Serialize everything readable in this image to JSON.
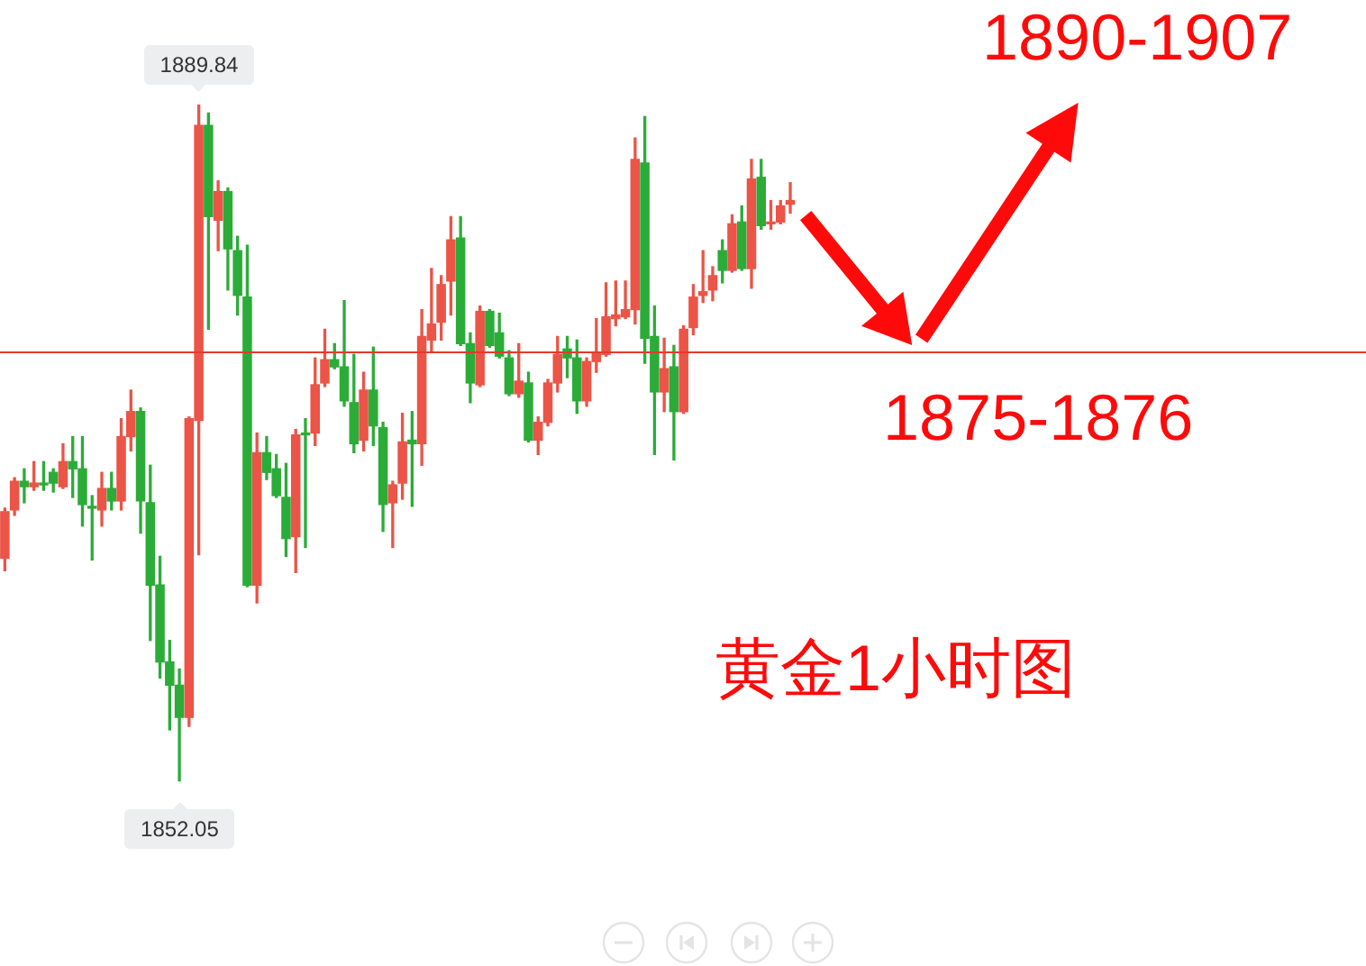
{
  "chart_data": {
    "type": "candlestick",
    "title": "黄金1小时图",
    "categories": [
      null,
      null,
      null,
      null,
      null,
      null,
      null,
      null,
      null,
      null,
      null,
      null,
      null,
      null,
      null,
      null,
      null,
      null,
      null,
      null,
      null,
      null,
      null,
      null,
      null,
      null,
      null,
      null,
      null,
      null,
      null,
      null,
      null,
      null,
      null,
      null,
      null,
      null,
      null,
      null,
      null,
      null,
      null,
      null,
      null,
      null,
      null,
      null,
      null,
      null,
      null,
      null,
      null,
      null,
      null,
      null,
      null,
      null,
      null,
      null,
      null,
      null,
      null,
      null,
      null,
      null,
      null,
      null,
      null,
      null,
      null,
      null,
      null,
      null,
      null,
      null,
      null,
      null,
      null,
      null,
      null,
      null
    ],
    "ohlc": [
      [
        1864.5,
        1867.3,
        1863.8,
        1867.1
      ],
      [
        1867.2,
        1869.0,
        1866.9,
        1868.8
      ],
      [
        1868.8,
        1869.5,
        1867.6,
        1868.5
      ],
      [
        1868.5,
        1869.9,
        1868.3,
        1868.7
      ],
      [
        1868.7,
        1869.9,
        1868.3,
        1868.6
      ],
      [
        1869.3,
        1869.5,
        1868.2,
        1868.7
      ],
      [
        1868.5,
        1870.9,
        1868.4,
        1869.9
      ],
      [
        1869.9,
        1871.3,
        1867.9,
        1869.5
      ],
      [
        1869.5,
        1871.3,
        1866.3,
        1867.5
      ],
      [
        1867.4,
        1868.0,
        1864.4,
        1867.3
      ],
      [
        1867.2,
        1869.3,
        1866.3,
        1868.4
      ],
      [
        1868.4,
        1869.3,
        1867.2,
        1867.7
      ],
      [
        1867.7,
        1872.3,
        1867.2,
        1871.3
      ],
      [
        1871.3,
        1873.9,
        1870.5,
        1872.7
      ],
      [
        1872.7,
        1872.9,
        1865.9,
        1867.7
      ],
      [
        1867.6,
        1869.7,
        1859.9,
        1863.0
      ],
      [
        1863.0,
        1864.6,
        1857.8,
        1858.7
      ],
      [
        1858.7,
        1859.9,
        1854.9,
        1857.4
      ],
      [
        1857.4,
        1858.3,
        1852.05,
        1855.6
      ],
      [
        1855.6,
        1872.4,
        1855.1,
        1872.3
      ],
      [
        1872.2,
        1889.84,
        1864.7,
        1888.7
      ],
      [
        1888.7,
        1889.4,
        1877.3,
        1883.6
      ],
      [
        1883.4,
        1885.6,
        1881.7,
        1885.0
      ],
      [
        1885.0,
        1885.2,
        1879.5,
        1881.8
      ],
      [
        1881.7,
        1882.5,
        1878.1,
        1879.2
      ],
      [
        1879.1,
        1882.0,
        1862.9,
        1863.0
      ],
      [
        1863.0,
        1871.5,
        1862.0,
        1870.4
      ],
      [
        1870.4,
        1871.3,
        1868.9,
        1869.3
      ],
      [
        1869.5,
        1870.3,
        1867.9,
        1868.0
      ],
      [
        1867.9,
        1869.8,
        1864.6,
        1865.6
      ],
      [
        1865.7,
        1871.7,
        1863.7,
        1871.4
      ],
      [
        1871.5,
        1872.3,
        1865.1,
        1871.4
      ],
      [
        1871.5,
        1875.7,
        1870.8,
        1874.2
      ],
      [
        1874.3,
        1877.3,
        1874.1,
        1875.6
      ],
      [
        1875.6,
        1876.5,
        1875.1,
        1875.2
      ],
      [
        1875.2,
        1878.9,
        1873.0,
        1873.3
      ],
      [
        1873.2,
        1875.9,
        1870.4,
        1870.9
      ],
      [
        1871.1,
        1874.9,
        1870.5,
        1873.9
      ],
      [
        1873.9,
        1876.3,
        1870.8,
        1871.9
      ],
      [
        1871.8,
        1872.1,
        1866.0,
        1867.5
      ],
      [
        1867.6,
        1868.8,
        1865.1,
        1868.6
      ],
      [
        1868.7,
        1872.6,
        1867.8,
        1871.0
      ],
      [
        1871.1,
        1872.7,
        1867.4,
        1870.9
      ],
      [
        1870.9,
        1878.4,
        1869.7,
        1876.9
      ],
      [
        1876.7,
        1880.7,
        1876.0,
        1877.6
      ],
      [
        1877.7,
        1880.3,
        1876.7,
        1879.8
      ],
      [
        1880.0,
        1883.6,
        1878.1,
        1882.3
      ],
      [
        1882.4,
        1883.6,
        1876.4,
        1876.5
      ],
      [
        1876.5,
        1877.1,
        1873.2,
        1874.3
      ],
      [
        1874.2,
        1878.6,
        1874.1,
        1878.3
      ],
      [
        1878.3,
        1878.4,
        1876.3,
        1876.4
      ],
      [
        1877.1,
        1878.2,
        1875.7,
        1875.8
      ],
      [
        1875.7,
        1876.1,
        1873.6,
        1873.7
      ],
      [
        1873.7,
        1876.5,
        1873.5,
        1874.4
      ],
      [
        1874.3,
        1874.9,
        1871.0,
        1871.1
      ],
      [
        1871.1,
        1872.4,
        1870.3,
        1872.1
      ],
      [
        1872.1,
        1874.5,
        1871.9,
        1874.3
      ],
      [
        1874.3,
        1876.9,
        1873.8,
        1875.9
      ],
      [
        1876.2,
        1876.9,
        1874.6,
        1875.7
      ],
      [
        1875.7,
        1876.7,
        1872.6,
        1873.3
      ],
      [
        1873.3,
        1875.7,
        1873.0,
        1875.5
      ],
      [
        1875.5,
        1877.9,
        1874.9,
        1876.0
      ],
      [
        1875.9,
        1879.9,
        1875.8,
        1878.0
      ],
      [
        1877.9,
        1880.0,
        1877.5,
        1878.1
      ],
      [
        1878.0,
        1880.0,
        1877.9,
        1878.4
      ],
      [
        1878.4,
        1888.0,
        1877.6,
        1886.8
      ],
      [
        1886.6,
        1889.2,
        1875.4,
        1876.8
      ],
      [
        1876.9,
        1878.6,
        1870.3,
        1873.8
      ],
      [
        1873.8,
        1876.8,
        1872.7,
        1875.1
      ],
      [
        1875.2,
        1876.4,
        1870.0,
        1872.7
      ],
      [
        1872.7,
        1877.5,
        1872.6,
        1877.3
      ],
      [
        1877.4,
        1879.8,
        1877.0,
        1879.1
      ],
      [
        1879.2,
        1881.7,
        1878.8,
        1879.4
      ],
      [
        1879.5,
        1880.8,
        1878.9,
        1880.3
      ],
      [
        1881.7,
        1882.3,
        1879.9,
        1880.6
      ],
      [
        1880.6,
        1883.7,
        1880.5,
        1883.2
      ],
      [
        1883.3,
        1884.2,
        1880.6,
        1880.7
      ],
      [
        1880.7,
        1886.8,
        1879.6,
        1885.7
      ],
      [
        1885.8,
        1886.8,
        1882.9,
        1883.1
      ],
      [
        1883.2,
        1884.5,
        1882.9,
        1883.3
      ],
      [
        1883.3,
        1884.5,
        1883.2,
        1884.2
      ],
      [
        1884.3,
        1885.5,
        1883.8,
        1884.5
      ]
    ],
    "colors": [
      "#eb5446",
      "#eb5446",
      "#2bac38",
      "#eb5446",
      "#2bac38",
      "#2bac38",
      "#eb5446",
      "#2bac38",
      "#2bac38",
      "#2bac38",
      "#eb5446",
      "#2bac38",
      "#eb5446",
      "#eb5446",
      "#2bac38",
      "#2bac38",
      "#2bac38",
      "#2bac38",
      "#2bac38",
      "#eb5446",
      "#eb5446",
      "#2bac38",
      "#eb5446",
      "#2bac38",
      "#2bac38",
      "#2bac38",
      "#eb5446",
      "#2bac38",
      "#2bac38",
      "#2bac38",
      "#eb5446",
      "#2bac38",
      "#eb5446",
      "#eb5446",
      "#2bac38",
      "#2bac38",
      "#2bac38",
      "#eb5446",
      "#2bac38",
      "#2bac38",
      "#eb5446",
      "#eb5446",
      "#2bac38",
      "#eb5446",
      "#eb5446",
      "#eb5446",
      "#eb5446",
      "#2bac38",
      "#2bac38",
      "#eb5446",
      "#2bac38",
      "#2bac38",
      "#2bac38",
      "#eb5446",
      "#2bac38",
      "#eb5446",
      "#eb5446",
      "#eb5446",
      "#2bac38",
      "#2bac38",
      "#eb5446",
      "#eb5446",
      "#eb5446",
      "#eb5446",
      "#eb5446",
      "#eb5446",
      "#2bac38",
      "#2bac38",
      "#eb5446",
      "#2bac38",
      "#eb5446",
      "#eb5446",
      "#eb5446",
      "#eb5446",
      "#2bac38",
      "#eb5446",
      "#2bac38",
      "#eb5446",
      "#2bac38",
      "#eb5446",
      "#eb5446",
      "#eb5446"
    ],
    "ref_lines": [
      {
        "axis": "y",
        "value": 1876.1,
        "color": "#e8392b"
      }
    ],
    "annotations": [
      {
        "text": "1889.84",
        "y": 1889.84
      },
      {
        "text": "1852.05",
        "y": 1852.05
      },
      "1890-1907",
      "1875-1876"
    ]
  }
}
